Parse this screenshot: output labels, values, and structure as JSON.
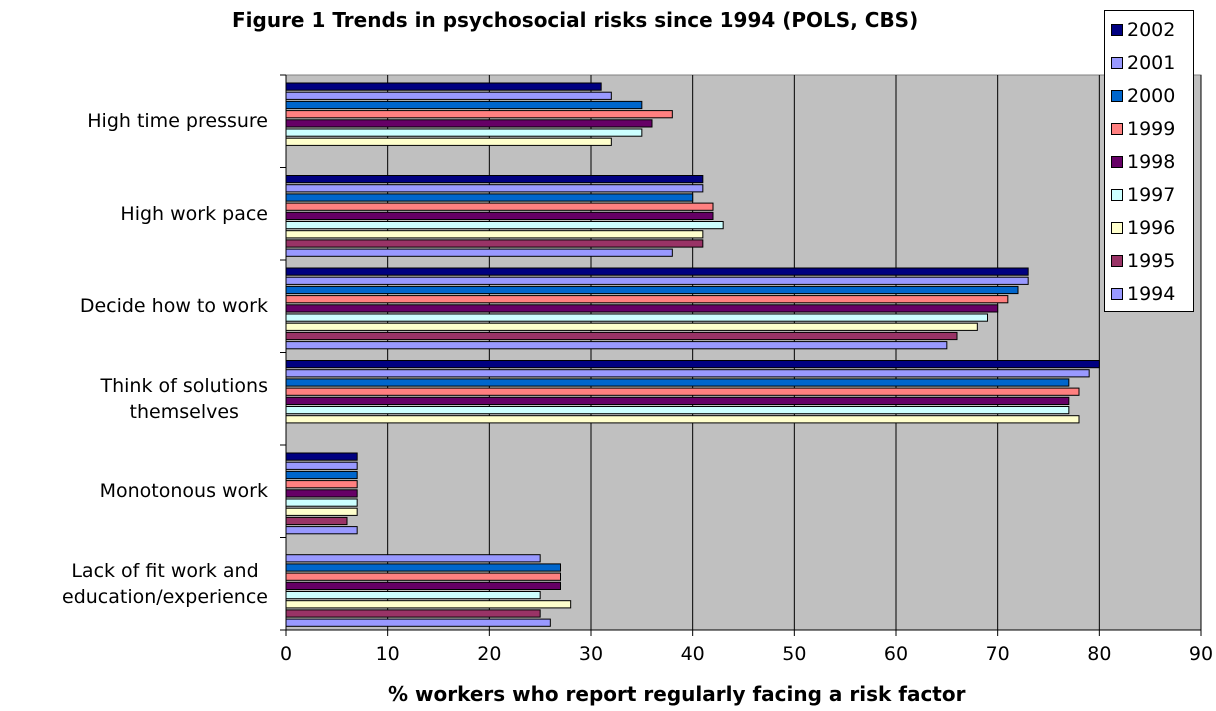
{
  "chart_data": {
    "type": "bar",
    "orientation": "horizontal",
    "title": "Figure 1  Trends in psychosocial risks since 1994 (POLS, CBS)",
    "xlabel": "% workers who report regularly facing a risk factor",
    "ylabel": "",
    "xlim": [
      0,
      90
    ],
    "xticks": [
      0,
      10,
      20,
      30,
      40,
      50,
      60,
      70,
      80,
      90
    ],
    "grid": "vertical",
    "legend_position": "right",
    "plot_background": "#c0c0c0",
    "categories": [
      [
        "High time pressure"
      ],
      [
        "High work pace"
      ],
      [
        "Decide how to work"
      ],
      [
        "Think of solutions",
        "themselves"
      ],
      [
        "Monotonous work"
      ],
      [
        "Lack of fit work and",
        "education/experience"
      ]
    ],
    "series": [
      {
        "name": "2002",
        "color": "#000080",
        "values": [
          31,
          41,
          73,
          80,
          7,
          null
        ]
      },
      {
        "name": "2001",
        "color": "#9999ff",
        "values": [
          32,
          41,
          73,
          79,
          7,
          25
        ]
      },
      {
        "name": "2000",
        "color": "#0066cc",
        "values": [
          35,
          40,
          72,
          77,
          7,
          27
        ]
      },
      {
        "name": "1999",
        "color": "#ff8080",
        "values": [
          38,
          42,
          71,
          78,
          7,
          27
        ]
      },
      {
        "name": "1998",
        "color": "#660066",
        "values": [
          36,
          42,
          70,
          77,
          7,
          27
        ]
      },
      {
        "name": "1997",
        "color": "#ccffff",
        "values": [
          35,
          43,
          69,
          77,
          7,
          25
        ]
      },
      {
        "name": "1996",
        "color": "#ffffcc",
        "values": [
          32,
          41,
          68,
          78,
          7,
          28
        ]
      },
      {
        "name": "1995",
        "color": "#993366",
        "values": [
          null,
          41,
          66,
          null,
          6,
          25
        ]
      },
      {
        "name": "1994",
        "color": "#9999ff",
        "values": [
          null,
          38,
          65,
          null,
          7,
          26
        ]
      }
    ]
  }
}
